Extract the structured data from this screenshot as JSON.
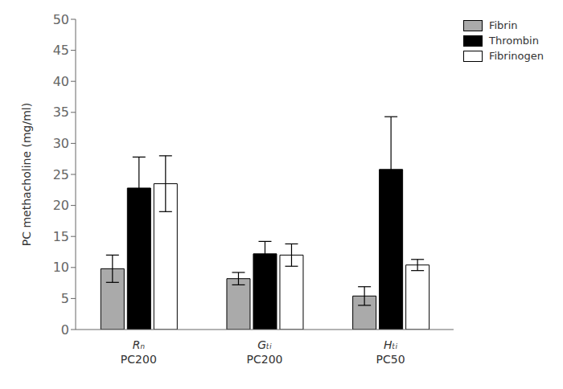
{
  "chart_data": {
    "type": "bar",
    "categories": [
      "Rₙ\nPC200",
      "Gₜᵢ\nPC200",
      "Hₜᵢ\nPC50"
    ],
    "series": [
      {
        "name": "Fibrin",
        "color": "#aaaaaa",
        "values": [
          9.8,
          8.2,
          5.4
        ],
        "errors": [
          2.2,
          1.0,
          1.5
        ]
      },
      {
        "name": "Thrombin",
        "color": "#000000",
        "values": [
          22.8,
          12.2,
          25.8
        ],
        "errors": [
          5.0,
          2.0,
          8.5
        ]
      },
      {
        "name": "Fibrinogen",
        "color": "#ffffff",
        "values": [
          23.5,
          12.0,
          10.4
        ],
        "errors": [
          4.5,
          1.8,
          0.9
        ]
      }
    ],
    "ylabel": "PC methacholine (mg/ml)",
    "ylim": [
      0,
      50
    ],
    "yticks": [
      0,
      5,
      10,
      15,
      20,
      25,
      30,
      35,
      40,
      45,
      50
    ],
    "legend": "upper right",
    "grid": false
  }
}
